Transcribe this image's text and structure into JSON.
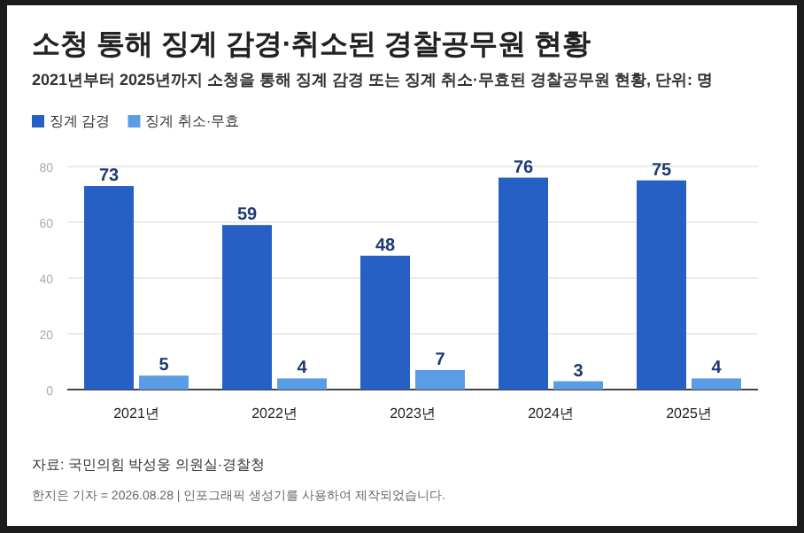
{
  "chart_data": {
    "type": "bar",
    "title": "소청 통해 징계 감경·취소된 경찰공무원 현황",
    "subtitle": "2021년부터 2025년까지 소청을 통해 징계 감경 또는 징계 취소·무효된 경찰공무원 현황, 단위: 명",
    "categories": [
      "2021년",
      "2022년",
      "2023년",
      "2024년",
      "2025년"
    ],
    "series": [
      {
        "name": "징계 감경",
        "color": "#2760c4",
        "values": [
          73,
          59,
          48,
          76,
          75
        ]
      },
      {
        "name": "징계 취소·무효",
        "color": "#5a9de6",
        "values": [
          5,
          4,
          7,
          3,
          4
        ]
      }
    ],
    "ylim": [
      0,
      80
    ],
    "yticks": [
      0,
      20,
      40,
      60,
      80
    ],
    "grid": "y",
    "legend": "top left",
    "data_labels": true,
    "annotations": [
      "자료: 국민의힘 박성웅 의원실·경찰청",
      "한지은 기자 = 2026.08.28 | 인포그래픽 생성기를 사용하여 제작되었습니다."
    ]
  }
}
